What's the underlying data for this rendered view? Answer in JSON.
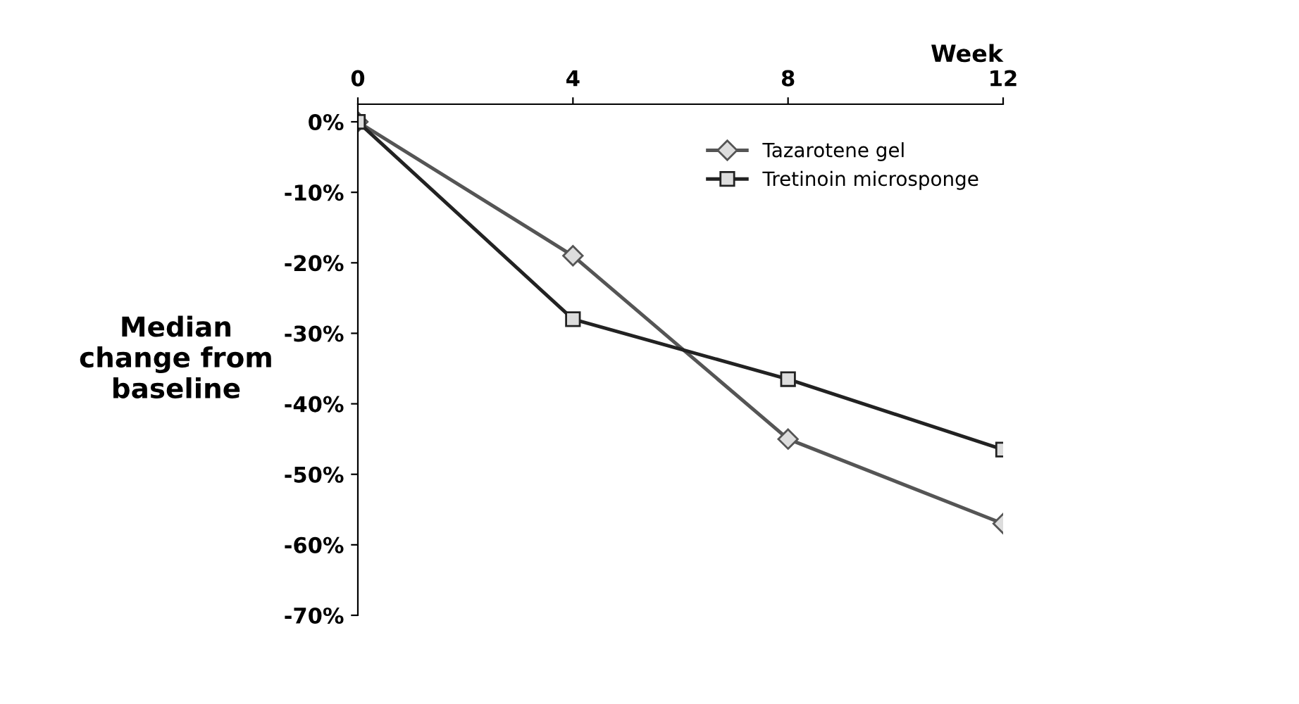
{
  "chart_data": {
    "type": "line",
    "xlabel": "Week",
    "ylabel": "Median change from baseline",
    "x": [
      0,
      4,
      8,
      12
    ],
    "series": [
      {
        "name": "Tazarotene gel",
        "color": "#555555",
        "marker": "diamond",
        "values": [
          0,
          -19,
          -45,
          -57
        ]
      },
      {
        "name": "Tretinoin microsponge",
        "color": "#222222",
        "marker": "square",
        "values": [
          0,
          -28,
          -36.5,
          -46.5
        ]
      }
    ],
    "xlim": [
      0,
      12
    ],
    "xticks": [
      0,
      4,
      8,
      12
    ],
    "ylim": [
      -70,
      2.5
    ],
    "yticks": [
      {
        "value": 0,
        "label": "0%"
      },
      {
        "value": -10,
        "label": "-10%"
      },
      {
        "value": -20,
        "label": "-20%"
      },
      {
        "value": -30,
        "label": "-30%"
      },
      {
        "value": -40,
        "label": "-40%"
      },
      {
        "value": -50,
        "label": "-50%"
      },
      {
        "value": -60,
        "label": "-60%"
      },
      {
        "value": -70,
        "label": "-70%"
      }
    ],
    "legend": "top right",
    "grid": false,
    "line_style": "solid"
  }
}
